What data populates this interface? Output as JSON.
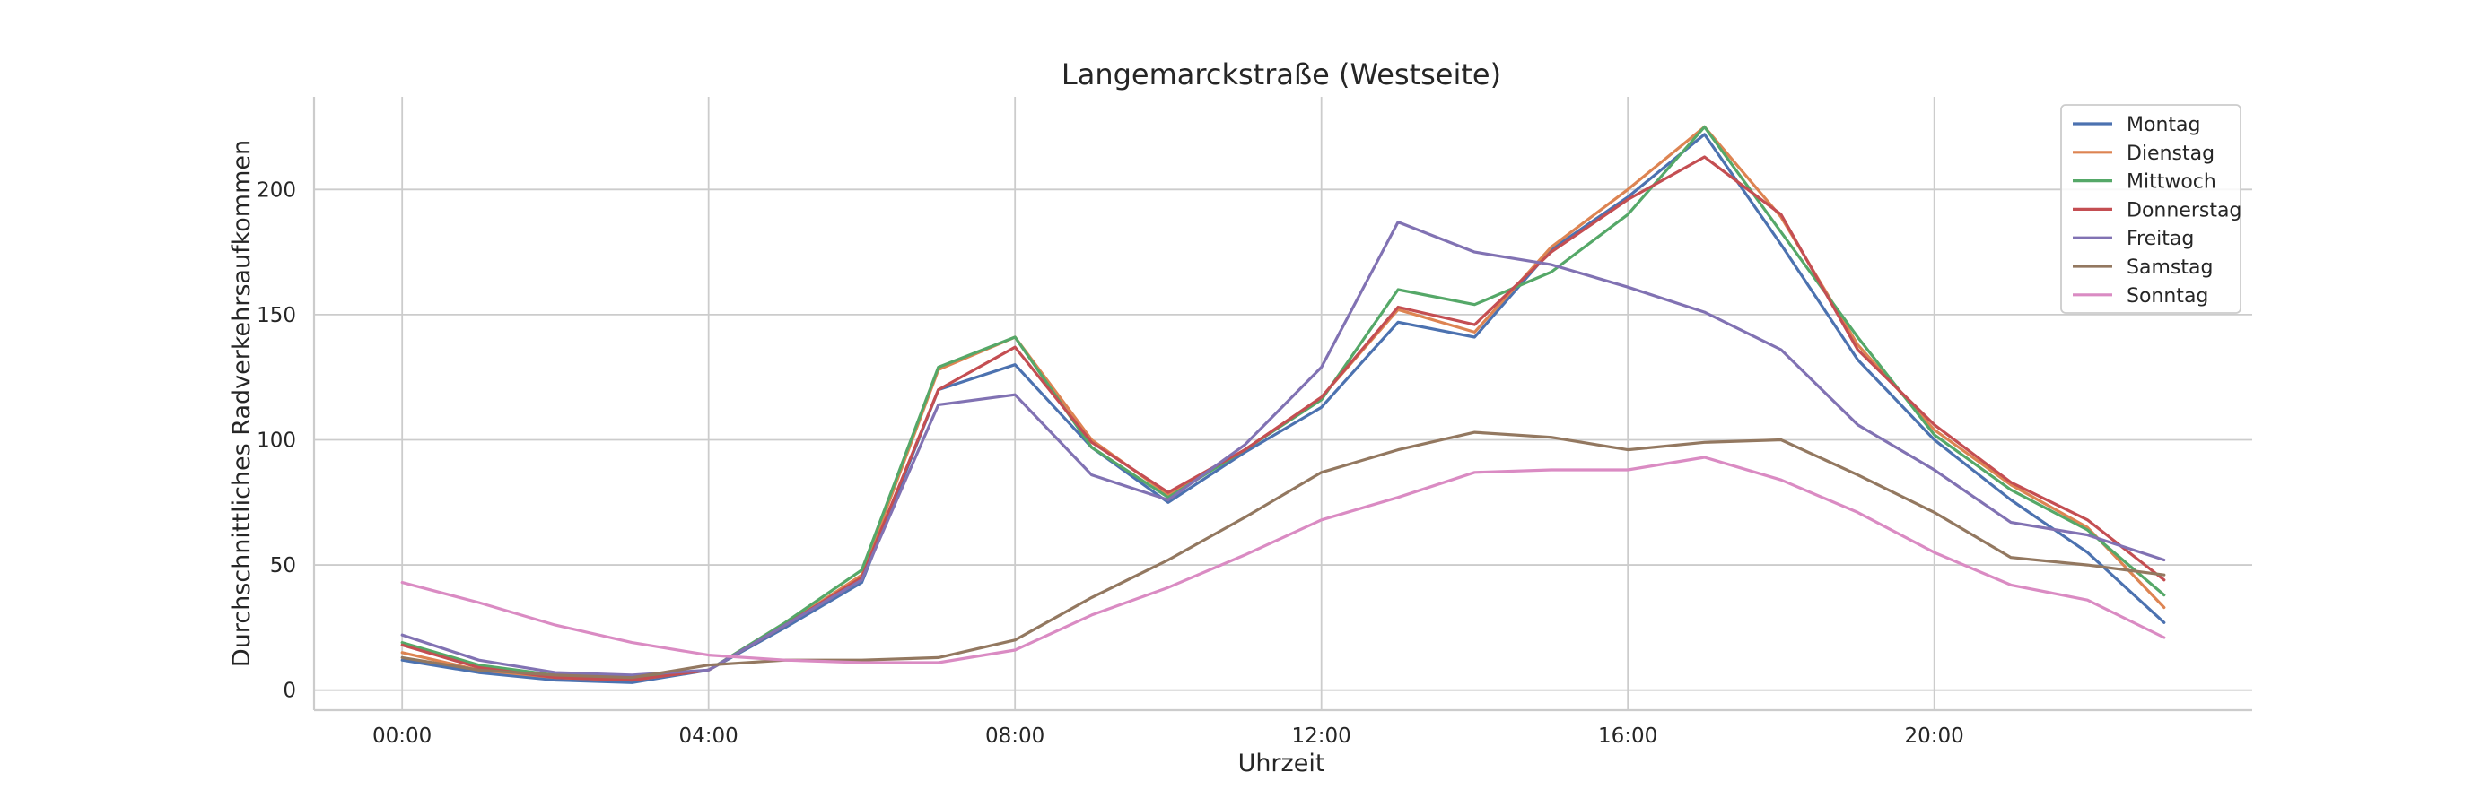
{
  "chart_data": {
    "type": "line",
    "title": "Langemarckstraße (Westseite)",
    "xlabel": "Uhrzeit",
    "ylabel": "Durchschnittliches Radverkehrsaufkommen",
    "x": [
      0,
      1,
      2,
      3,
      4,
      5,
      6,
      7,
      8,
      9,
      10,
      11,
      12,
      13,
      14,
      15,
      16,
      17,
      18,
      19,
      20,
      21,
      22,
      23
    ],
    "xticks": [
      0,
      4,
      8,
      12,
      16,
      20
    ],
    "xtick_labels": [
      "00:00",
      "04:00",
      "08:00",
      "12:00",
      "16:00",
      "20:00"
    ],
    "xlim": [
      -1.15,
      24.15
    ],
    "yticks": [
      0,
      50,
      100,
      150,
      200
    ],
    "ylim": [
      -8,
      237
    ],
    "grid": true,
    "legend_position": "top-right",
    "series": [
      {
        "name": "Montag",
        "color": "#4c72b0",
        "values": [
          12,
          7,
          4,
          3,
          8,
          25,
          43,
          120,
          130,
          97,
          75,
          95,
          113,
          147,
          141,
          176,
          197,
          222,
          178,
          132,
          100,
          76,
          55,
          27
        ]
      },
      {
        "name": "Dienstag",
        "color": "#dd8452",
        "values": [
          15,
          8,
          5,
          4,
          8,
          26,
          46,
          128,
          141,
          100,
          78,
          96,
          117,
          152,
          143,
          177,
          200,
          225,
          189,
          138,
          104,
          82,
          65,
          33
        ]
      },
      {
        "name": "Mittwoch",
        "color": "#55a868",
        "values": [
          19,
          10,
          6,
          5,
          8,
          27,
          48,
          129,
          141,
          97,
          77,
          96,
          116,
          160,
          154,
          167,
          190,
          225,
          183,
          141,
          102,
          80,
          64,
          38
        ]
      },
      {
        "name": "Donnerstag",
        "color": "#c44e52",
        "values": [
          18,
          9,
          5,
          4,
          8,
          26,
          45,
          120,
          137,
          99,
          79,
          96,
          117,
          153,
          146,
          175,
          196,
          213,
          190,
          136,
          106,
          83,
          68,
          44
        ]
      },
      {
        "name": "Freitag",
        "color": "#8172b3",
        "values": [
          22,
          12,
          7,
          6,
          8,
          26,
          44,
          114,
          118,
          86,
          76,
          98,
          129,
          187,
          175,
          170,
          161,
          151,
          136,
          106,
          88,
          67,
          62,
          52
        ]
      },
      {
        "name": "Samstag",
        "color": "#937860",
        "values": [
          13,
          8,
          6,
          5,
          10,
          12,
          12,
          13,
          20,
          37,
          52,
          69,
          87,
          96,
          103,
          101,
          96,
          99,
          100,
          86,
          71,
          53,
          50,
          46
        ]
      },
      {
        "name": "Sonntag",
        "color": "#da8bc3",
        "values": [
          43,
          35,
          26,
          19,
          14,
          12,
          11,
          11,
          16,
          30,
          41,
          54,
          68,
          77,
          87,
          88,
          88,
          93,
          84,
          71,
          55,
          42,
          36,
          21
        ]
      }
    ]
  }
}
